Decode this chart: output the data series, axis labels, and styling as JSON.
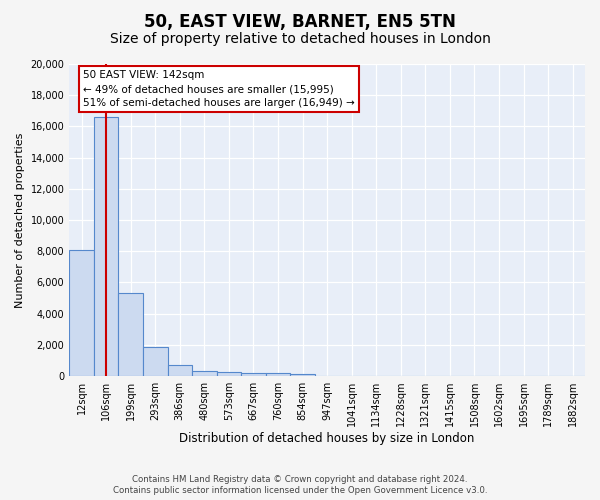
{
  "title1": "50, EAST VIEW, BARNET, EN5 5TN",
  "title2": "Size of property relative to detached houses in London",
  "xlabel": "Distribution of detached houses by size in London",
  "ylabel": "Number of detached properties",
  "bin_labels": [
    "12sqm",
    "106sqm",
    "199sqm",
    "293sqm",
    "386sqm",
    "480sqm",
    "573sqm",
    "667sqm",
    "760sqm",
    "854sqm",
    "947sqm",
    "1041sqm",
    "1134sqm",
    "1228sqm",
    "1321sqm",
    "1415sqm",
    "1508sqm",
    "1602sqm",
    "1695sqm",
    "1789sqm",
    "1882sqm"
  ],
  "bar_values": [
    8100,
    16600,
    5300,
    1850,
    700,
    320,
    230,
    210,
    190,
    150,
    0,
    0,
    0,
    0,
    0,
    0,
    0,
    0,
    0,
    0,
    0
  ],
  "bar_color": "#ccdaf0",
  "bar_edge_color": "#5588cc",
  "red_line_index": 1,
  "annotation_text": "50 EAST VIEW: 142sqm\n← 49% of detached houses are smaller (15,995)\n51% of semi-detached houses are larger (16,949) →",
  "annotation_box_color": "#ffffff",
  "annotation_box_edge": "#cc0000",
  "ylim": [
    0,
    20000
  ],
  "yticks": [
    0,
    2000,
    4000,
    6000,
    8000,
    10000,
    12000,
    14000,
    16000,
    18000,
    20000
  ],
  "footer1": "Contains HM Land Registry data © Crown copyright and database right 2024.",
  "footer2": "Contains public sector information licensed under the Open Government Licence v3.0.",
  "background_color": "#e8eef8",
  "grid_color": "#ffffff",
  "title1_fontsize": 12,
  "title2_fontsize": 10
}
